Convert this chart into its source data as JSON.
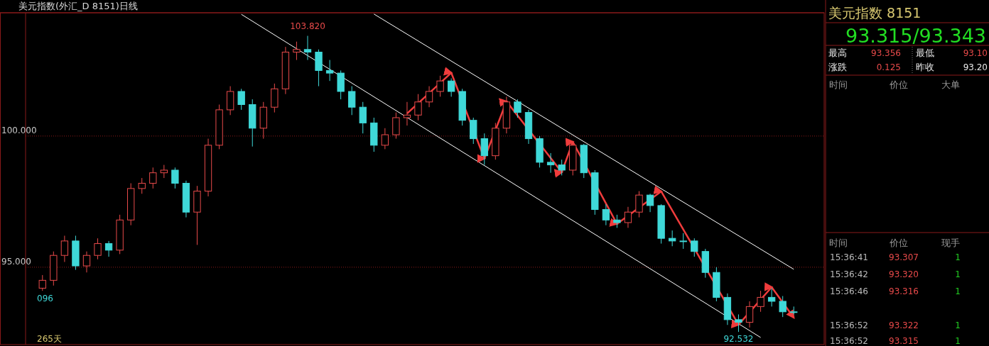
{
  "chart_data": [
    {
      "type": "candlestick",
      "title": "美元指数(外汇_D 8151)日线",
      "categories": [
        null,
        null,
        null,
        null,
        null,
        null,
        null,
        null,
        null,
        null,
        null,
        null,
        null,
        null,
        null,
        null,
        null,
        null,
        null,
        null,
        null,
        null,
        null,
        null,
        null,
        null,
        null,
        null,
        null,
        null,
        null,
        null,
        null,
        null,
        null,
        null,
        null,
        null,
        null,
        null,
        null,
        null,
        null,
        null,
        null,
        null,
        null,
        null,
        null,
        null,
        null,
        null,
        null,
        null,
        null,
        null,
        null,
        null,
        null,
        null,
        null,
        null,
        null,
        null,
        null,
        null,
        null,
        null,
        null
      ],
      "ohlc": [
        [
          94.2,
          94.7,
          94.1,
          94.5
        ],
        [
          94.5,
          95.6,
          94.3,
          95.45
        ],
        [
          95.45,
          96.2,
          95.2,
          96.0
        ],
        [
          96.0,
          96.2,
          94.9,
          95.05
        ],
        [
          95.05,
          95.6,
          94.8,
          95.45
        ],
        [
          95.45,
          96.1,
          95.3,
          95.9
        ],
        [
          95.9,
          96.0,
          95.4,
          95.65
        ],
        [
          95.65,
          97.0,
          95.5,
          96.8
        ],
        [
          96.8,
          98.2,
          96.6,
          98.0
        ],
        [
          98.0,
          98.4,
          97.8,
          98.2
        ],
        [
          98.2,
          98.8,
          98.0,
          98.6
        ],
        [
          98.6,
          98.9,
          98.4,
          98.7
        ],
        [
          98.7,
          98.8,
          98.0,
          98.2
        ],
        [
          98.2,
          98.3,
          96.9,
          97.1
        ],
        [
          97.1,
          98.1,
          95.85,
          97.9
        ],
        [
          97.9,
          99.9,
          97.7,
          99.65
        ],
        [
          99.65,
          101.2,
          99.5,
          101.0
        ],
        [
          101.0,
          101.9,
          100.8,
          101.7
        ],
        [
          101.7,
          101.8,
          101.0,
          101.2
        ],
        [
          101.2,
          101.4,
          99.6,
          100.3
        ],
        [
          100.3,
          101.3,
          99.9,
          101.1
        ],
        [
          101.1,
          102.0,
          100.9,
          101.8
        ],
        [
          101.8,
          103.4,
          101.6,
          103.2
        ],
        [
          103.2,
          103.6,
          102.9,
          103.3
        ],
        [
          103.3,
          103.82,
          102.9,
          103.2
        ],
        [
          103.2,
          103.3,
          101.9,
          102.5
        ],
        [
          102.5,
          102.9,
          102.1,
          102.4
        ],
        [
          102.4,
          102.5,
          101.4,
          101.7
        ],
        [
          101.7,
          101.9,
          100.8,
          101.1
        ],
        [
          101.1,
          101.3,
          100.1,
          100.5
        ],
        [
          100.5,
          100.7,
          99.4,
          99.65
        ],
        [
          99.65,
          100.3,
          99.5,
          100.05
        ],
        [
          100.05,
          100.9,
          99.9,
          100.7
        ],
        [
          100.7,
          101.3,
          100.4,
          100.8
        ],
        [
          100.8,
          101.6,
          100.6,
          101.3
        ],
        [
          101.3,
          101.9,
          101.1,
          101.7
        ],
        [
          101.7,
          102.3,
          101.5,
          102.1
        ],
        [
          102.1,
          102.2,
          101.5,
          101.7
        ],
        [
          101.7,
          101.8,
          100.4,
          100.6
        ],
        [
          100.6,
          100.7,
          99.7,
          99.9
        ],
        [
          99.9,
          100.1,
          98.9,
          99.25
        ],
        [
          99.25,
          100.5,
          99.1,
          100.3
        ],
        [
          100.3,
          101.5,
          100.1,
          101.3
        ],
        [
          101.3,
          101.4,
          100.7,
          100.9
        ],
        [
          100.9,
          101.0,
          99.7,
          99.9
        ],
        [
          99.9,
          100.0,
          98.8,
          99.0
        ],
        [
          99.0,
          99.35,
          98.6,
          98.9
        ],
        [
          98.9,
          99.1,
          98.5,
          98.7
        ],
        [
          98.7,
          99.8,
          98.5,
          99.65
        ],
        [
          99.65,
          99.7,
          98.4,
          98.6
        ],
        [
          98.6,
          98.7,
          97.0,
          97.2
        ],
        [
          97.2,
          97.4,
          96.6,
          96.8
        ],
        [
          96.8,
          97.0,
          96.5,
          96.7
        ],
        [
          96.7,
          97.3,
          96.5,
          97.1
        ],
        [
          97.1,
          97.9,
          96.9,
          97.75
        ],
        [
          97.75,
          97.8,
          97.1,
          97.35
        ],
        [
          97.35,
          97.4,
          95.9,
          96.1
        ],
        [
          96.1,
          96.4,
          95.8,
          96.0
        ],
        [
          96.0,
          96.3,
          95.7,
          96.0
        ],
        [
          96.0,
          96.1,
          95.4,
          95.6
        ],
        [
          95.6,
          95.7,
          94.6,
          94.8
        ],
        [
          94.8,
          95.0,
          93.7,
          93.85
        ],
        [
          93.85,
          94.0,
          92.8,
          93.0
        ],
        [
          93.0,
          93.2,
          92.532,
          92.9
        ],
        [
          92.9,
          93.7,
          92.7,
          93.5
        ],
        [
          93.5,
          94.1,
          93.3,
          93.85
        ],
        [
          93.85,
          94.2,
          93.5,
          93.7
        ],
        [
          93.7,
          93.9,
          93.1,
          93.3
        ],
        [
          93.3,
          93.5,
          93.2,
          93.3
        ]
      ],
      "colors": [
        "#e84a4a",
        "#e84a4a",
        "#e84a4a",
        "#3fd8d8",
        "#e84a4a",
        "#e84a4a",
        "#3fd8d8",
        "#e84a4a",
        "#e84a4a",
        "#e84a4a",
        "#e84a4a",
        "#e84a4a",
        "#3fd8d8",
        "#3fd8d8",
        "#e84a4a",
        "#e84a4a",
        "#e84a4a",
        "#e84a4a",
        "#3fd8d8",
        "#3fd8d8",
        "#e84a4a",
        "#e84a4a",
        "#e84a4a",
        "#e84a4a",
        "#3fd8d8",
        "#3fd8d8",
        "#3fd8d8",
        "#3fd8d8",
        "#3fd8d8",
        "#3fd8d8",
        "#3fd8d8",
        "#e84a4a",
        "#e84a4a",
        "#e84a4a",
        "#e84a4a",
        "#e84a4a",
        "#e84a4a",
        "#3fd8d8",
        "#3fd8d8",
        "#3fd8d8",
        "#3fd8d8",
        "#e84a4a",
        "#e84a4a",
        "#3fd8d8",
        "#3fd8d8",
        "#3fd8d8",
        "#3fd8d8",
        "#3fd8d8",
        "#e84a4a",
        "#3fd8d8",
        "#3fd8d8",
        "#3fd8d8",
        "#3fd8d8",
        "#e84a4a",
        "#e84a4a",
        "#3fd8d8",
        "#3fd8d8",
        "#3fd8d8",
        "#3fd8d8",
        "#3fd8d8",
        "#3fd8d8",
        "#3fd8d8",
        "#3fd8d8",
        "#3fd8d8",
        "#e84a4a",
        "#e84a4a",
        "#3fd8d8",
        "#3fd8d8",
        "#3fd8d8"
      ],
      "series": [
        {
          "type": "line",
          "color": "#ffffff",
          "values": [
            null,
            null,
            null,
            null,
            null,
            null,
            null,
            null,
            null,
            null,
            null,
            null,
            null,
            null,
            null,
            null,
            null,
            null,
            104.64,
            null,
            null,
            null,
            null,
            null,
            null,
            null,
            null,
            null,
            null,
            null,
            null,
            null,
            null,
            null,
            null,
            null,
            null,
            null,
            null,
            null,
            null,
            null,
            null,
            null,
            null,
            null,
            null,
            null,
            null,
            null,
            null,
            null,
            null,
            null,
            null,
            null,
            null,
            null,
            null,
            null,
            null,
            null,
            null,
            null,
            null,
            92.32,
            null,
            null,
            null
          ]
        },
        {
          "type": "line",
          "color": "#ffffff",
          "values": [
            null,
            null,
            null,
            null,
            null,
            null,
            null,
            null,
            null,
            null,
            null,
            null,
            null,
            null,
            null,
            null,
            null,
            null,
            null,
            null,
            null,
            null,
            null,
            null,
            null,
            null,
            null,
            null,
            null,
            null,
            104.65,
            null,
            null,
            null,
            null,
            null,
            null,
            null,
            null,
            null,
            null,
            null,
            null,
            null,
            null,
            null,
            null,
            null,
            null,
            null,
            null,
            null,
            null,
            null,
            null,
            null,
            null,
            null,
            null,
            null,
            null,
            null,
            null,
            null,
            null,
            null,
            null,
            null,
            94.92
          ]
        },
        {
          "type": "line",
          "color": "#f03c3c",
          "values": [
            null,
            null,
            null,
            null,
            null,
            null,
            null,
            null,
            null,
            null,
            null,
            null,
            null,
            null,
            null,
            null,
            null,
            null,
            null,
            null,
            null,
            null,
            null,
            null,
            null,
            null,
            null,
            null,
            null,
            null,
            null,
            null,
            null,
            100.86,
            null,
            null,
            null,
            102.41,
            null,
            null,
            99.14,
            null,
            101.32,
            null,
            null,
            null,
            null,
            98.62,
            99.78,
            null,
            null,
            null,
            96.65,
            null,
            null,
            null,
            97.89,
            null,
            null,
            null,
            null,
            null,
            null,
            92.81,
            null,
            null,
            94.24,
            null,
            93.08
          ]
        }
      ],
      "ylim": [
        92.05,
        104.7
      ],
      "yticks": [
        {
          "value": 95,
          "label": "95.000"
        },
        {
          "value": 100,
          "label": "100.000"
        }
      ],
      "grid": "y",
      "annotations": [
        {
          "text": "103.820",
          "y": 103.82
        },
        {
          "text": "92.532",
          "y": 92.532
        },
        "096",
        "265天"
      ]
    },
    {
      "type": "other",
      "title": "美元指数 8151",
      "subtitle": "93.315/93.343",
      "annotations": [
        "最高",
        "93.356",
        "最低",
        "93.10",
        "涨跌",
        "0.125",
        "昨收",
        "93.20",
        "时间",
        "价位",
        "大单",
        "时间",
        "价位",
        "现手",
        "15:36:41",
        "93.307",
        "1",
        "15:36:42",
        "93.320",
        "1",
        "15:36:46",
        "93.316",
        "1",
        "15:36:52",
        "93.322",
        "1",
        "15:36:52",
        "93.315",
        "1"
      ]
    }
  ]
}
